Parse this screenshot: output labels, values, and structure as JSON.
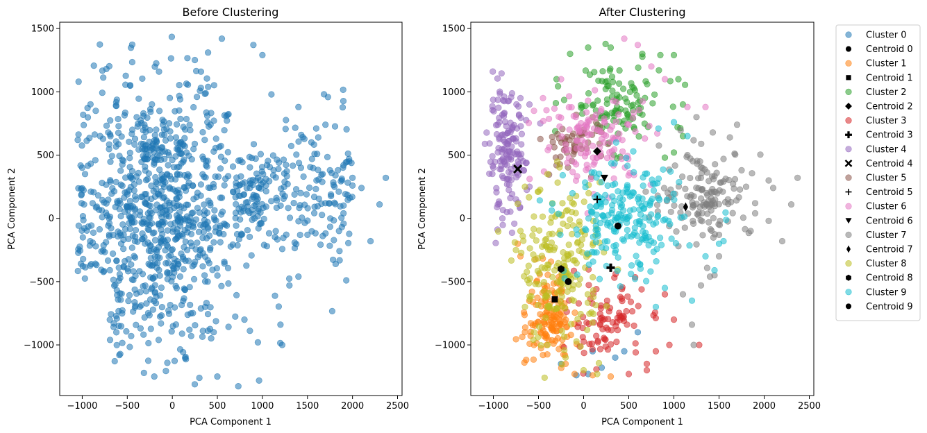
{
  "chart_data": [
    {
      "type": "scatter",
      "title": "Before Clustering",
      "xlabel": "PCA Component 1",
      "ylabel": "PCA Component 2",
      "xlim": [
        -1250,
        2550
      ],
      "ylim": [
        -1400,
        1550
      ],
      "xticks": [
        -1000,
        -500,
        0,
        500,
        1000,
        1500,
        2000,
        2500
      ],
      "yticks": [
        -1000,
        -500,
        0,
        500,
        1000,
        1500
      ],
      "grid": false,
      "series": [
        {
          "color": "#1f77b4",
          "alpha": 0.55,
          "region": {
            "center": [
              -150,
              50
            ],
            "core_half_width": [
              550,
              650
            ],
            "approx_points": 900
          },
          "outliers": [
            [
              2370,
              320
            ],
            [
              2300,
              110
            ],
            [
              2200,
              -180
            ],
            [
              2100,
              240
            ],
            [
              2000,
              320
            ],
            [
              1900,
              40
            ],
            [
              1850,
              -100
            ],
            [
              1750,
              380
            ],
            [
              1700,
              740
            ],
            [
              1620,
              640
            ],
            [
              1550,
              470
            ],
            [
              1500,
              -130
            ],
            [
              1400,
              880
            ],
            [
              1400,
              -460
            ],
            [
              1300,
              -530
            ],
            [
              1200,
              -840
            ],
            [
              1220,
              -1000
            ],
            [
              1100,
              980
            ],
            [
              1000,
              1290
            ],
            [
              950,
              -980
            ],
            [
              900,
              1370
            ],
            [
              800,
              -800
            ],
            [
              550,
              1420
            ],
            [
              500,
              -1250
            ],
            [
              300,
              -1260
            ],
            [
              -200,
              -1250
            ],
            [
              -1000,
              400
            ],
            [
              -980,
              110
            ],
            [
              -850,
              850
            ],
            [
              1050,
              -220
            ],
            [
              1700,
              120
            ],
            [
              1800,
              250
            ],
            [
              1600,
              300
            ]
          ]
        }
      ]
    },
    {
      "type": "scatter",
      "title": "After Clustering",
      "xlabel": "PCA Component 1",
      "ylabel": "PCA Component 2",
      "xlim": [
        -1250,
        2550
      ],
      "ylim": [
        -1400,
        1550
      ],
      "xticks": [
        -1000,
        -500,
        0,
        500,
        1000,
        1500,
        2000,
        2500
      ],
      "yticks": [
        -1000,
        -500,
        0,
        500,
        1000,
        1500
      ],
      "grid": false,
      "legend_placement": "outside-right",
      "series": [
        {
          "name": "Cluster 0",
          "color": "#1f77b4",
          "marker": "circle",
          "points": [
            [
              -80,
              -1240
            ],
            [
              50,
              -1230
            ],
            [
              200,
              -1180
            ],
            [
              350,
              -1100
            ],
            [
              450,
              -1050
            ],
            [
              -250,
              -1150
            ],
            [
              600,
              -900
            ],
            [
              100,
              -1050
            ]
          ]
        },
        {
          "name": "Centroid 0",
          "color": "#000000",
          "marker": "circle",
          "x": 380,
          "y": -60
        },
        {
          "name": "Cluster 1",
          "color": "#ff7f0e",
          "marker": "circle",
          "region": {
            "center": [
              -380,
              -780
            ],
            "half_width": [
              180,
              240
            ]
          },
          "points": [
            [
              -700,
              -300
            ],
            [
              -730,
              -200
            ],
            [
              -650,
              -900
            ],
            [
              -550,
              -1000
            ],
            [
              -450,
              -1080
            ],
            [
              -200,
              -1150
            ],
            [
              -100,
              -1230
            ],
            [
              100,
              -1240
            ],
            [
              300,
              -1250
            ]
          ]
        },
        {
          "name": "Centroid 1",
          "color": "#000000",
          "marker": "square",
          "x": -320,
          "y": -640
        },
        {
          "name": "Cluster 2",
          "color": "#2ca02c",
          "marker": "circle",
          "region": {
            "center": [
              350,
              900
            ],
            "half_width": [
              380,
              230
            ]
          },
          "points": [
            [
              -300,
              1100
            ],
            [
              -150,
              1300
            ],
            [
              50,
              1350
            ],
            [
              300,
              1350
            ],
            [
              650,
              1300
            ],
            [
              850,
              1290
            ],
            [
              1000,
              1290
            ],
            [
              1050,
              1100
            ],
            [
              1100,
              900
            ],
            [
              1100,
              650
            ],
            [
              1000,
              520
            ],
            [
              900,
              480
            ]
          ]
        },
        {
          "name": "Centroid 2",
          "color": "#000000",
          "marker": "diamond",
          "x": 150,
          "y": 530
        },
        {
          "name": "Cluster 3",
          "color": "#d62728",
          "marker": "circle",
          "region": {
            "center": [
              250,
              -800
            ],
            "half_width": [
              300,
              250
            ]
          },
          "points": [
            [
              1000,
              -800
            ],
            [
              950,
              -1000
            ],
            [
              800,
              -1050
            ],
            [
              700,
              -1150
            ],
            [
              1280,
              -1000
            ],
            [
              500,
              -1230
            ],
            [
              700,
              -1200
            ],
            [
              900,
              -600
            ]
          ]
        },
        {
          "name": "Centroid 3",
          "color": "#000000",
          "marker": "plus",
          "x": 300,
          "y": -390
        },
        {
          "name": "Cluster 4",
          "color": "#9467bd",
          "marker": "circle",
          "region": {
            "center": [
              -850,
              500
            ],
            "half_width": [
              150,
              330
            ]
          },
          "points": [
            [
              -1000,
              400
            ],
            [
              -950,
              110
            ],
            [
              -900,
              0
            ],
            [
              -700,
              950
            ],
            [
              -600,
              900
            ],
            [
              -480,
              750
            ],
            [
              -600,
              250
            ],
            [
              -750,
              150
            ],
            [
              -850,
              50
            ]
          ]
        },
        {
          "name": "Centroid 4",
          "color": "#000000",
          "marker": "x",
          "x": -730,
          "y": 390
        },
        {
          "name": "Cluster 5",
          "color": "#8c564b",
          "marker": "circle",
          "region": {
            "center": [
              -100,
              600
            ],
            "half_width": [
              250,
              150
            ]
          },
          "points": [
            [
              0,
              700
            ],
            [
              -300,
              420
            ],
            [
              100,
              800
            ],
            [
              -200,
              550
            ]
          ]
        },
        {
          "name": "Centroid 5",
          "color": "#000000",
          "marker": "plus-thin",
          "x": 150,
          "y": 150
        },
        {
          "name": "Cluster 6",
          "color": "#e377c2",
          "marker": "circle",
          "region": {
            "center": [
              150,
              620
            ],
            "half_width": [
              450,
              250
            ]
          },
          "points": [
            [
              450,
              1420
            ],
            [
              -550,
              850
            ],
            [
              -450,
              950
            ],
            [
              600,
              1370
            ],
            [
              1150,
              880
            ],
            [
              1350,
              880
            ],
            [
              -250,
              1100
            ],
            [
              750,
              1200
            ],
            [
              900,
              1100
            ]
          ]
        },
        {
          "name": "Centroid 6",
          "color": "#000000",
          "marker": "triangle-down",
          "x": 230,
          "y": 320
        },
        {
          "name": "Cluster 7",
          "color": "#7f7f7f",
          "marker": "circle",
          "region": {
            "center": [
              1350,
              200
            ],
            "half_width": [
              350,
              250
            ]
          },
          "points": [
            [
              2370,
              320
            ],
            [
              2300,
              110
            ],
            [
              2200,
              -180
            ],
            [
              2100,
              240
            ],
            [
              2050,
              300
            ],
            [
              1900,
              40
            ],
            [
              1850,
              -100
            ],
            [
              1750,
              380
            ],
            [
              1700,
              740
            ],
            [
              1620,
              640
            ],
            [
              1550,
              470
            ],
            [
              1500,
              -130
            ],
            [
              1400,
              -460
            ],
            [
              1300,
              -530
            ],
            [
              1220,
              -1000
            ],
            [
              1200,
              -840
            ],
            [
              1100,
              -600
            ],
            [
              1050,
              -220
            ],
            [
              1150,
              500
            ],
            [
              1250,
              800
            ],
            [
              1500,
              -300
            ],
            [
              1450,
              -450
            ],
            [
              1800,
              250
            ],
            [
              1900,
              120
            ],
            [
              2050,
              -20
            ]
          ]
        },
        {
          "name": "Centroid 7",
          "color": "#000000",
          "marker": "thin-diamond",
          "x": 1130,
          "y": 90
        },
        {
          "name": "Cluster 8",
          "color": "#bcbd22",
          "marker": "circle",
          "region": {
            "center": [
              -250,
              -380
            ],
            "half_width": [
              330,
              450
            ]
          },
          "points": [
            [
              -700,
              -100
            ],
            [
              -750,
              -250
            ],
            [
              -650,
              -700
            ],
            [
              -550,
              -900
            ],
            [
              -400,
              -1000
            ],
            [
              -200,
              -1100
            ],
            [
              0,
              -1200
            ],
            [
              150,
              -1230
            ],
            [
              -650,
              250
            ],
            [
              -400,
              350
            ]
          ]
        },
        {
          "name": "Centroid 8",
          "color": "#000000",
          "marker": "hexagon",
          "x": -250,
          "y": -400
        },
        {
          "name": "Cluster 9",
          "color": "#17becf",
          "marker": "circle",
          "region": {
            "center": [
              450,
              -30
            ],
            "half_width": [
              450,
              320
            ]
          },
          "points": [
            [
              1000,
              760
            ],
            [
              1150,
              650
            ],
            [
              1200,
              -650
            ],
            [
              1350,
              -300
            ],
            [
              1450,
              -410
            ],
            [
              1550,
              -180
            ],
            [
              1500,
              -200
            ],
            [
              900,
              -550
            ],
            [
              800,
              -700
            ]
          ]
        },
        {
          "name": "Centroid 9",
          "color": "#000000",
          "marker": "circle",
          "x": -170,
          "y": -500
        }
      ]
    }
  ]
}
